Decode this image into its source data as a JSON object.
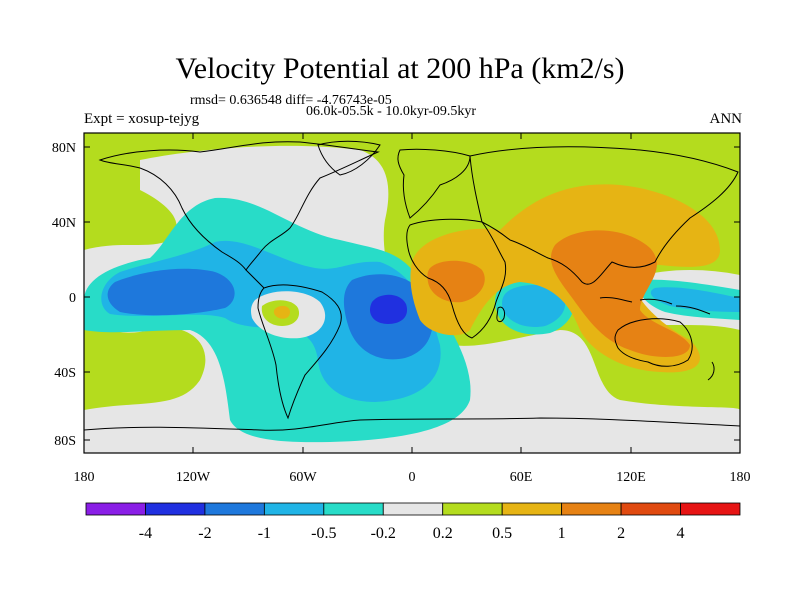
{
  "title": "Velocity Potential at 200 hPa (km2/s)",
  "stats": "rmsd= 0.636548 diff= -4.76743e-05",
  "expt": "Expt = xosup-tejyg",
  "period": "06.0k-05.5k - 10.0kyr-09.5kyr",
  "season": "ANN",
  "lat_labels": [
    "80N",
    "40N",
    "0",
    "40S",
    "80S"
  ],
  "lon_labels": [
    "180",
    "120W",
    "60W",
    "0",
    "60E",
    "120E",
    "180"
  ],
  "colorbar": {
    "colors": [
      "#8a1ee6",
      "#2030e0",
      "#1e78dc",
      "#20b4e6",
      "#28dcc8",
      "#e6e6e6",
      "#b4dc1e",
      "#e6b414",
      "#e68214",
      "#e04a10",
      "#e61414"
    ],
    "labels": [
      "-4",
      "-2",
      "-1",
      "-0.5",
      "-0.2",
      "0.2",
      "0.5",
      "1",
      "2",
      "4"
    ]
  },
  "field_colors": {
    "neutral": "#e6e6e6",
    "pos_weak": "#b4dc1e",
    "pos_mid": "#e6b414",
    "pos_strong": "#e68214",
    "neg_weak": "#28dcc8",
    "neg_mid": "#20b4e6",
    "neg_strong": "#1e78dc",
    "neg_max": "#2030e0"
  }
}
